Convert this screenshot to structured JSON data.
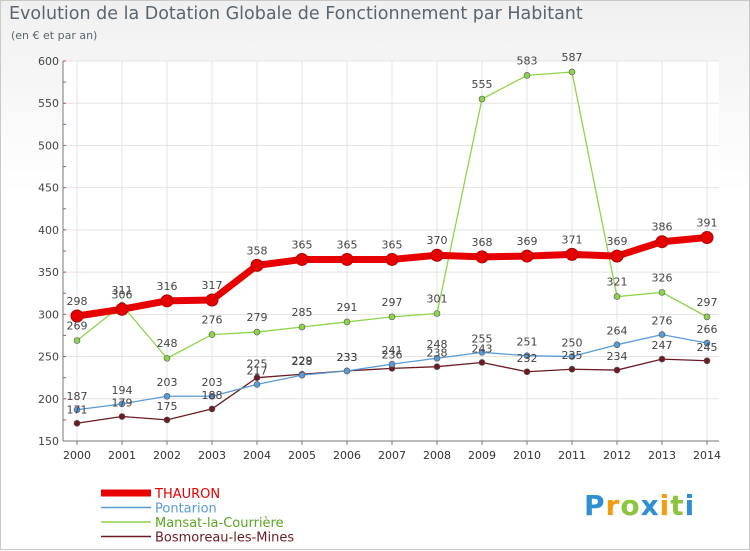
{
  "chart_data": {
    "type": "line",
    "title": "Evolution de la Dotation Globale de Fonctionnement par Habitant",
    "subtitle": "(en € et par an)",
    "categories": [
      "2000",
      "2001",
      "2002",
      "2003",
      "2004",
      "2005",
      "2006",
      "2007",
      "2008",
      "2009",
      "2010",
      "2011",
      "2012",
      "2013",
      "2014"
    ],
    "ylim": [
      150,
      600
    ],
    "yticks": [
      150,
      200,
      250,
      300,
      350,
      400,
      450,
      500,
      550,
      600
    ],
    "grid": true,
    "legend": "bottom-left",
    "series": [
      {
        "name": "THAURON",
        "color": "#e60000",
        "values": [
          298,
          306,
          316,
          317,
          358,
          365,
          365,
          365,
          370,
          368,
          369,
          371,
          369,
          386,
          391
        ]
      },
      {
        "name": "Pontarion",
        "color": "#5b9bd5",
        "values": [
          187,
          194,
          203,
          203,
          217,
          228,
          233,
          241,
          248,
          255,
          251,
          250,
          264,
          276,
          266
        ]
      },
      {
        "name": "Mansat-la-Courrière",
        "color": "#8ed44b",
        "values": [
          269,
          311,
          248,
          276,
          279,
          285,
          291,
          297,
          301,
          555,
          583,
          587,
          321,
          326,
          297
        ]
      },
      {
        "name": "Bosmoreau-les-Mines",
        "color": "#6b1c22",
        "values": [
          171,
          179,
          175,
          188,
          225,
          229,
          233,
          236,
          238,
          243,
          232,
          235,
          234,
          247,
          245
        ]
      }
    ]
  },
  "logo": {
    "letters": [
      "P",
      "r",
      "o",
      "x",
      "i",
      "t",
      "i"
    ],
    "colors": [
      "#2f8fd3",
      "#f39c12",
      "#8cc63f",
      "#2f8fd3",
      "#f39c12",
      "#8cc63f",
      "#2f8fd3"
    ]
  }
}
